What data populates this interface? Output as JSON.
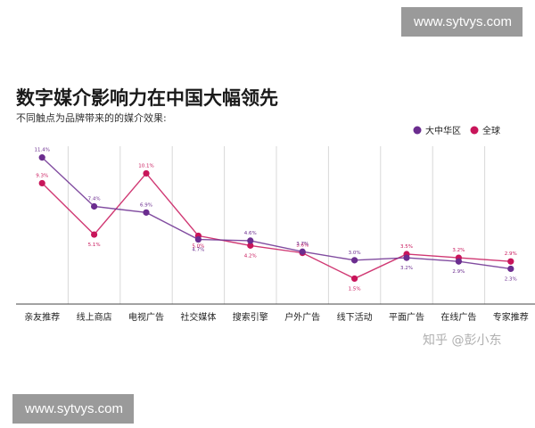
{
  "watermark_text": "www.sytvys.com",
  "credit": "知乎 @彭小东",
  "chart_data": {
    "type": "line",
    "title": "数字媒介影响力在中国大幅领先",
    "subtitle": "不同触点为品牌带来的的媒介效果:",
    "categories": [
      "亲友推荐",
      "线上商店",
      "电视广告",
      "社交媒体",
      "搜索引擎",
      "户外广告",
      "线下活动",
      "平面广告",
      "在线广告",
      "专家推荐"
    ],
    "series": [
      {
        "name": "大中华区",
        "color": "#6b2d8f",
        "values": [
          11.4,
          7.4,
          6.9,
          4.7,
          4.6,
          3.7,
          3.0,
          3.2,
          2.9,
          2.3
        ],
        "labels": [
          "11.4%",
          "7.4%",
          "6.9%",
          "4.7%",
          "4.6%",
          "3.7%",
          "3.0%",
          "3.2%",
          "2.9%",
          "2.3%"
        ]
      },
      {
        "name": "全球",
        "color": "#c8155a",
        "values": [
          9.3,
          5.1,
          10.1,
          5.0,
          4.2,
          3.6,
          1.5,
          3.5,
          3.2,
          2.9
        ],
        "labels": [
          "9.3%",
          "5.1%",
          "10.1%",
          "5.0%",
          "4.2%",
          "3.6%",
          "1.5%",
          "3.5%",
          "3.2%",
          "2.9%"
        ]
      }
    ],
    "legend": "top-right",
    "grid": "vertical"
  }
}
